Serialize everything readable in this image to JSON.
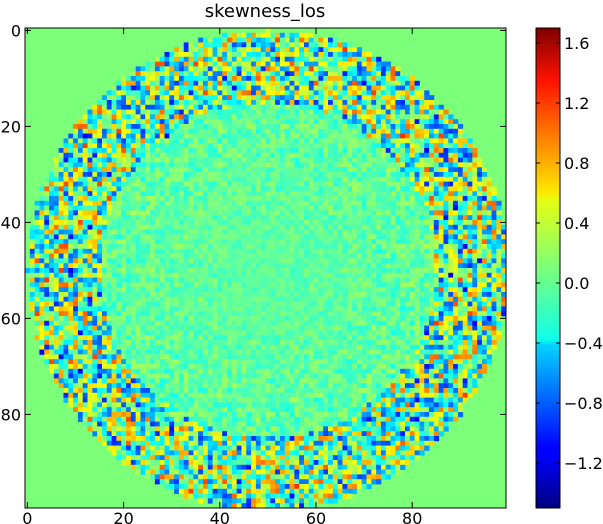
{
  "chart_data": {
    "type": "heatmap",
    "title": "skewness_los",
    "xlabel": "",
    "ylabel": "",
    "xlim": [
      0,
      99
    ],
    "ylim": [
      99,
      0
    ],
    "grid_size": [
      100,
      100
    ],
    "x_ticks": [
      0,
      20,
      40,
      60,
      80
    ],
    "y_ticks": [
      0,
      20,
      40,
      60,
      80
    ],
    "x_tick_labels": [
      "0",
      "20",
      "40",
      "60",
      "80"
    ],
    "y_tick_labels": [
      "0",
      "20",
      "40",
      "60",
      "80"
    ],
    "colormap": "jet",
    "colorbar": {
      "vmin": -1.5,
      "vmax": 1.7,
      "ticks": [
        1.6,
        1.2,
        0.8,
        0.4,
        0.0,
        -0.4,
        -0.8,
        -1.2
      ],
      "tick_labels": [
        "1.6",
        "1.2",
        "0.8",
        "0.4",
        "0.0",
        "−0.4",
        "−0.8",
        "−1.2"
      ]
    },
    "background_value": 0.0,
    "disk": {
      "center": [
        50,
        50
      ],
      "radius": 50
    },
    "description_values": {
      "outer_ring_radius_range": [
        35,
        50
      ],
      "outer_ring_amplitude": 1.0,
      "inner_amplitude": 0.25
    },
    "colors": {
      "background": "#ffffff",
      "axes_edge": "#000000",
      "outside_disk": "#7cff79"
    }
  }
}
